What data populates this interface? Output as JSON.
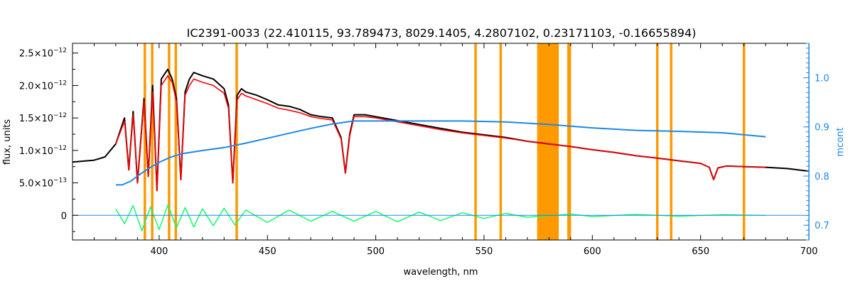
{
  "chart_data": {
    "type": "line",
    "title": "IC2391-0033    (22.410115, 93.789473, 8029.1405, 4.2807102, 0.23171103, -0.16655894)",
    "xlabel": "wavelength, nm",
    "ylabel": "flux, units",
    "y2label": "mcont",
    "xlim": [
      360,
      700
    ],
    "ylim": [
      -3.8e-13,
      2.65e-12
    ],
    "y2lim": [
      0.67,
      1.07
    ],
    "x_ticks": [
      {
        "value": 400,
        "label": "400"
      },
      {
        "value": 450,
        "label": "450"
      },
      {
        "value": 500,
        "label": "500"
      },
      {
        "value": 550,
        "label": "550"
      },
      {
        "value": 600,
        "label": "600"
      },
      {
        "value": 650,
        "label": "650"
      },
      {
        "value": 700,
        "label": "700"
      }
    ],
    "y_ticks": [
      {
        "value": 0,
        "mant": "0",
        "exp": ""
      },
      {
        "value": 5e-13,
        "mant": "5.0×10",
        "exp": "−13"
      },
      {
        "value": 1e-12,
        "mant": "1.0×10",
        "exp": "−12"
      },
      {
        "value": 1.5e-12,
        "mant": "1.5×10",
        "exp": "−12"
      },
      {
        "value": 2e-12,
        "mant": "2.0×10",
        "exp": "−12"
      },
      {
        "value": 2.5e-12,
        "mant": "2.5×10",
        "exp": "−12"
      }
    ],
    "y2_ticks": [
      {
        "value": 0.7,
        "label": "0.7"
      },
      {
        "value": 0.8,
        "label": "0.8"
      },
      {
        "value": 0.9,
        "label": "0.9"
      },
      {
        "value": 1.0,
        "label": "1.0"
      }
    ],
    "masked_wavelengths": [
      393.4,
      396.8,
      404.6,
      407.7,
      435.8,
      546.1,
      557.7,
      589.0,
      589.6,
      630.0,
      636.4,
      670.0
    ],
    "masked_bands": [
      [
        574.5,
        584.5
      ]
    ],
    "series": [
      {
        "key": "observed",
        "color": "#000000",
        "axis": "left",
        "x": [
          360,
          370,
          375,
          380,
          384,
          386,
          388,
          390,
          393,
          395,
          397,
          399,
          401,
          403,
          404,
          406,
          408,
          410,
          412,
          414,
          416,
          420,
          425,
          430,
          432,
          434,
          436,
          438,
          440,
          445,
          450,
          455,
          460,
          465,
          470,
          475,
          480,
          484,
          486,
          488,
          490,
          495,
          500,
          510,
          520,
          530,
          540,
          550,
          560,
          570,
          580,
          590,
          600,
          610,
          620,
          630,
          640,
          650,
          654,
          656,
          658,
          662,
          670,
          680,
          690,
          700
        ],
        "y": [
          8.2e-13,
          8.5e-13,
          9e-13,
          1.1e-12,
          1.5e-12,
          7e-13,
          1.6e-12,
          5e-13,
          1.8e-12,
          6e-13,
          2e-12,
          3.8e-13,
          2.1e-12,
          2.2e-12,
          2.25e-12,
          2.1e-12,
          1.8e-12,
          5.5e-13,
          1.9e-12,
          2.1e-12,
          2.2e-12,
          2.15e-12,
          2.1e-12,
          1.95e-12,
          1.7e-12,
          5e-13,
          1.85e-12,
          1.95e-12,
          1.9e-12,
          1.85e-12,
          1.78e-12,
          1.7e-12,
          1.68e-12,
          1.63e-12,
          1.55e-12,
          1.52e-12,
          1.5e-12,
          1.2e-12,
          6.5e-13,
          1.25e-12,
          1.55e-12,
          1.55e-12,
          1.52e-12,
          1.46e-12,
          1.4e-12,
          1.34e-12,
          1.28e-12,
          1.24e-12,
          1.2e-12,
          1.14e-12,
          1.1e-12,
          1.06e-12,
          1.01e-12,
          9.7e-13,
          9.2e-13,
          8.8e-13,
          8.4e-13,
          8e-13,
          7.4e-13,
          5.5e-13,
          7.3e-13,
          7.6e-13,
          7.5e-13,
          7.4e-13,
          7.2e-13,
          6.8e-13
        ]
      },
      {
        "key": "model",
        "color": "#ff0000",
        "axis": "left",
        "x": [
          380,
          384,
          386,
          388,
          390,
          393,
          395,
          397,
          399,
          401,
          403,
          404,
          406,
          408,
          410,
          412,
          414,
          416,
          420,
          425,
          430,
          432,
          434,
          436,
          438,
          440,
          445,
          450,
          455,
          460,
          465,
          470,
          475,
          480,
          484,
          486,
          488,
          490,
          495,
          500,
          510,
          520,
          530,
          540,
          550,
          560,
          570,
          580,
          590,
          600,
          610,
          620,
          630,
          640,
          650,
          654,
          656,
          658,
          662,
          670,
          680
        ],
        "y": [
          1.1e-12,
          1.45e-12,
          7e-13,
          1.55e-12,
          5e-13,
          1.75e-12,
          6e-13,
          1.9e-12,
          3.8e-13,
          2e-12,
          2.1e-12,
          2.15e-12,
          2.05e-12,
          1.75e-12,
          5.5e-13,
          1.85e-12,
          2e-12,
          2.1e-12,
          2.05e-12,
          2e-12,
          1.88e-12,
          1.65e-12,
          5e-13,
          1.78e-12,
          1.88e-12,
          1.84e-12,
          1.78e-12,
          1.72e-12,
          1.65e-12,
          1.62e-12,
          1.58e-12,
          1.52e-12,
          1.49e-12,
          1.47e-12,
          1.18e-12,
          6.5e-13,
          1.22e-12,
          1.52e-12,
          1.52e-12,
          1.5e-12,
          1.44e-12,
          1.38e-12,
          1.32e-12,
          1.27e-12,
          1.23e-12,
          1.19e-12,
          1.14e-12,
          1.1e-12,
          1.06e-12,
          1.01e-12,
          9.7e-13,
          9.2e-13,
          8.8e-13,
          8.4e-13,
          8e-13,
          7.4e-13,
          5.5e-13,
          7.3e-13,
          7.6e-13,
          7.5e-13,
          7.4e-13
        ]
      },
      {
        "key": "continuum",
        "color": "#1e88e5",
        "axis": "right",
        "x": [
          380,
          383,
          387,
          390,
          395,
          400,
          405,
          410,
          420,
          430,
          440,
          450,
          460,
          470,
          480,
          490,
          500,
          520,
          540,
          560,
          580,
          600,
          620,
          640,
          660,
          680
        ],
        "y": [
          0.782,
          0.782,
          0.79,
          0.8,
          0.815,
          0.828,
          0.838,
          0.845,
          0.852,
          0.858,
          0.867,
          0.877,
          0.887,
          0.897,
          0.906,
          0.912,
          0.912,
          0.912,
          0.912,
          0.91,
          0.905,
          0.898,
          0.893,
          0.891,
          0.888,
          0.88
        ]
      },
      {
        "key": "residuals",
        "color": "#00ff66",
        "axis": "left",
        "x": [
          380,
          384,
          388,
          392,
          396,
          400,
          404,
          408,
          412,
          416,
          420,
          425,
          430,
          435,
          440,
          450,
          460,
          470,
          480,
          490,
          500,
          510,
          520,
          530,
          540,
          550,
          560,
          570,
          590,
          600,
          620,
          640,
          660,
          680
        ],
        "y": [
          1e-13,
          -1.3e-13,
          1.5e-13,
          -2.4e-13,
          1.3e-13,
          -2.2e-13,
          1.6e-13,
          -1.9e-13,
          1.2e-13,
          -1.8e-13,
          1e-13,
          -1.6e-13,
          1.1e-13,
          -1.5e-13,
          8e-14,
          -1.1e-13,
          8e-14,
          -9e-14,
          6e-14,
          -9e-14,
          6e-14,
          -1e-13,
          5e-14,
          -8e-14,
          4e-14,
          -5e-14,
          3e-14,
          -3e-14,
          2e-14,
          -2e-14,
          1.5e-14,
          -1.5e-14,
          1e-14,
          0
        ]
      },
      {
        "key": "zero-line",
        "color": "#1e88e5",
        "axis": "left",
        "x": [
          360,
          700
        ],
        "y": [
          0,
          0
        ]
      }
    ]
  }
}
